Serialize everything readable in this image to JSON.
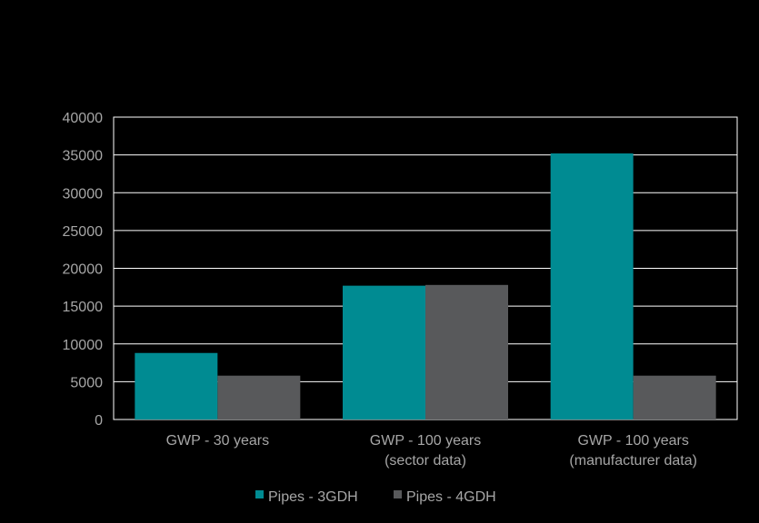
{
  "chart_data": {
    "type": "bar",
    "categories": [
      [
        "GWP - 30 years"
      ],
      [
        "GWP - 100 years",
        "(sector data)"
      ],
      [
        "GWP - 100 years",
        "(manufacturer data)"
      ]
    ],
    "series": [
      {
        "name": "Pipes - 3GDH",
        "values": [
          8800,
          17700,
          35200
        ],
        "color": "#008b92"
      },
      {
        "name": "Pipes - 4GDH",
        "values": [
          5800,
          17800,
          5800
        ],
        "color": "#58595b"
      }
    ],
    "ylim": [
      0,
      40000
    ],
    "yticks": [
      "0",
      "5000",
      "10000",
      "15000",
      "20000",
      "25000",
      "30000",
      "35000",
      "40000"
    ],
    "grid": true,
    "legend_position": "bottom",
    "background": "#000000",
    "grid_color": "#ffffff",
    "text_color": "#a6a6a6"
  }
}
